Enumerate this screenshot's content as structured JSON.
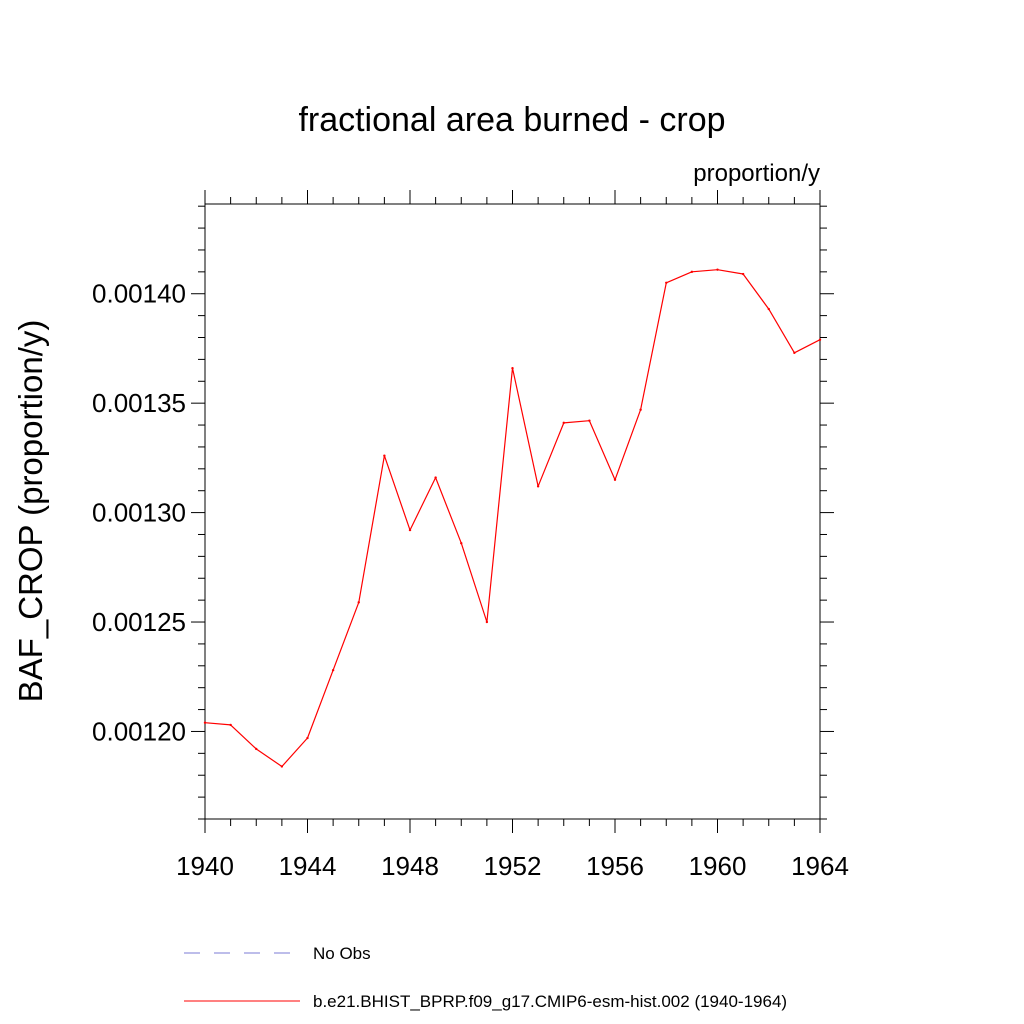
{
  "chart_data": {
    "type": "line",
    "title": "fractional area burned - crop",
    "units_label": "proportion/y",
    "ylabel": "BAF_CROP  (proportion/y)",
    "xlabel": "",
    "xlim": [
      1940,
      1964
    ],
    "ylim": [
      0.00116,
      0.001441
    ],
    "x_ticks": [
      "1940",
      "1944",
      "1948",
      "1952",
      "1956",
      "1960",
      "1964"
    ],
    "y_ticks": [
      "0.00120",
      "0.00125",
      "0.00130",
      "0.00135",
      "0.00140"
    ],
    "grid": false,
    "series": [
      {
        "name": "No Obs",
        "color": "#7b7bd6",
        "dash": true,
        "x": [],
        "y": []
      },
      {
        "name": "b.e21.BHIST_BPRP.f09_g17.CMIP6-esm-hist.002 (1940-1964)",
        "color": "#ff0000",
        "dash": false,
        "x": [
          1940,
          1941,
          1942,
          1943,
          1944,
          1945,
          1946,
          1947,
          1948,
          1949,
          1950,
          1951,
          1952,
          1953,
          1954,
          1955,
          1956,
          1957,
          1958,
          1959,
          1960,
          1961,
          1962,
          1963,
          1964
        ],
        "y": [
          0.001204,
          0.001203,
          0.001192,
          0.001184,
          0.001197,
          0.001228,
          0.001259,
          0.001326,
          0.001292,
          0.001316,
          0.001286,
          0.00125,
          0.001366,
          0.001312,
          0.001341,
          0.001342,
          0.001315,
          0.001347,
          0.001405,
          0.00141,
          0.001411,
          0.001409,
          0.001393,
          0.001373,
          0.001379
        ]
      }
    ],
    "legend_position": "bottom"
  }
}
